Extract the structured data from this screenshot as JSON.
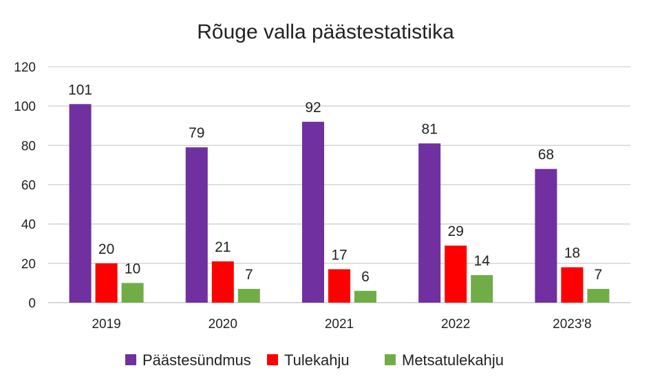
{
  "chart_data": {
    "type": "bar",
    "title": "Rõuge valla päästestatistika",
    "categories": [
      "2019",
      "2020",
      "2021",
      "2022",
      "2023'8"
    ],
    "series": [
      {
        "name": "Päästesündmus",
        "color": "#7030a0",
        "values": [
          101,
          79,
          92,
          81,
          68
        ]
      },
      {
        "name": "Tulekahju",
        "color": "#ff0000",
        "values": [
          20,
          21,
          17,
          29,
          18
        ]
      },
      {
        "name": "Metsatulekahju",
        "color": "#70ad47",
        "values": [
          10,
          7,
          6,
          14,
          7
        ]
      }
    ],
    "ylim": [
      0,
      120
    ],
    "yticks": [
      0,
      20,
      40,
      60,
      80,
      100,
      120
    ],
    "grid": true,
    "legend": "bottom",
    "data_labels": true
  }
}
